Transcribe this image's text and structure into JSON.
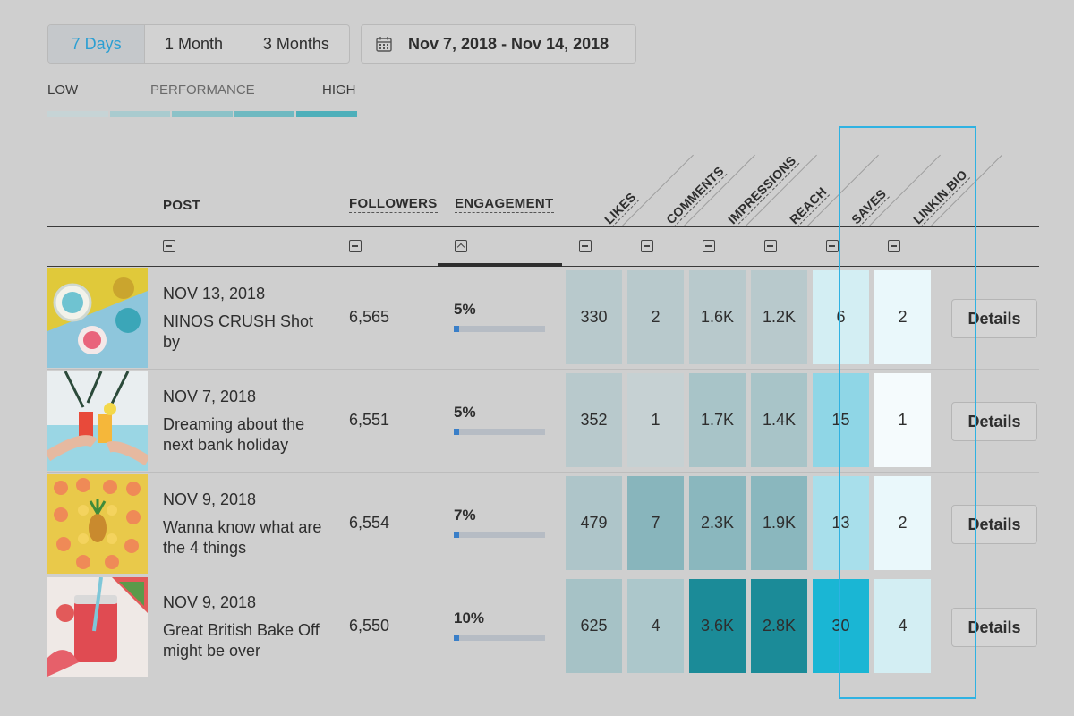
{
  "range_tabs": [
    {
      "label": "7 Days",
      "active": true
    },
    {
      "label": "1 Month",
      "active": false
    },
    {
      "label": "3 Months",
      "active": false
    }
  ],
  "date_range": "Nov 7, 2018 - Nov 14, 2018",
  "performance": {
    "low": "LOW",
    "title": "PERFORMANCE",
    "high": "HIGH",
    "gradient": [
      "#c6d4d6",
      "#a9cbcf",
      "#8cc2c8",
      "#6fb9c1",
      "#4eafba"
    ]
  },
  "headers": {
    "post": "POST",
    "followers": "FOLLOWERS",
    "engagement": "ENGAGEMENT",
    "metrics": [
      "LIKES",
      "COMMENTS",
      "IMPRESSIONS",
      "REACH",
      "SAVES",
      "LINKIN.BIO"
    ]
  },
  "rows": [
    {
      "date": "NOV 13, 2018",
      "caption": "NINOS CRUSH Shot by",
      "followers": "6,565",
      "engagement": "5%",
      "engagement_level": 0.05,
      "metrics": [
        {
          "value": "330",
          "color": "#b8c9cc"
        },
        {
          "value": "2",
          "color": "#b8c9cc"
        },
        {
          "value": "1.6K",
          "color": "#b8c9cc"
        },
        {
          "value": "1.2K",
          "color": "#b8c9cc"
        },
        {
          "value": "6",
          "color": "#d3eef3"
        },
        {
          "value": "2",
          "color": "#eaf8fb"
        }
      ],
      "details": "Details"
    },
    {
      "date": "NOV 7, 2018",
      "caption": "Dreaming about the next bank holiday",
      "followers": "6,551",
      "engagement": "5%",
      "engagement_level": 0.05,
      "metrics": [
        {
          "value": "352",
          "color": "#b8c9cc"
        },
        {
          "value": "1",
          "color": "#c6d1d3"
        },
        {
          "value": "1.7K",
          "color": "#a8c4c8"
        },
        {
          "value": "1.4K",
          "color": "#a8c4c8"
        },
        {
          "value": "15",
          "color": "#8fd6e6"
        },
        {
          "value": "1",
          "color": "#f5fbfd"
        }
      ],
      "details": "Details"
    },
    {
      "date": "NOV 9, 2018",
      "caption": "Wanna know what are the 4 things",
      "followers": "6,554",
      "engagement": "7%",
      "engagement_level": 0.07,
      "metrics": [
        {
          "value": "479",
          "color": "#aec5c9"
        },
        {
          "value": "7",
          "color": "#88b5bc"
        },
        {
          "value": "2.3K",
          "color": "#8ab7be"
        },
        {
          "value": "1.9K",
          "color": "#8ab7be"
        },
        {
          "value": "13",
          "color": "#a8dfeb"
        },
        {
          "value": "2",
          "color": "#eaf8fb"
        }
      ],
      "details": "Details"
    },
    {
      "date": "NOV 9, 2018",
      "caption": "Great British Bake Off might be over",
      "followers": "6,550",
      "engagement": "10%",
      "engagement_level": 0.1,
      "metrics": [
        {
          "value": "625",
          "color": "#a6c2c6"
        },
        {
          "value": "4",
          "color": "#acc7cb"
        },
        {
          "value": "3.6K",
          "color": "#1b8b98"
        },
        {
          "value": "2.8K",
          "color": "#1b8b98"
        },
        {
          "value": "30",
          "color": "#1ab6d4"
        },
        {
          "value": "4",
          "color": "#d3eef3"
        }
      ],
      "details": "Details"
    }
  ]
}
